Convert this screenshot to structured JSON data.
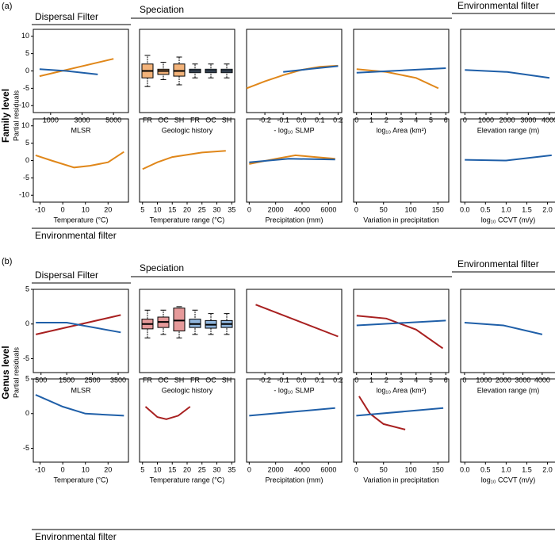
{
  "figure": {
    "sections": [
      {
        "tag": "(a)",
        "level": "Family level",
        "ylabel": "Partial residuals",
        "dispersal": "Dispersal Filter",
        "speciation": "Speciation",
        "env_top": "Environmental filter",
        "env_bottom": "Environmental filter"
      },
      {
        "tag": "(b)",
        "level": "Genus level",
        "ylabel": "Partial residuals",
        "dispersal": "Dispersal Filter",
        "speciation": "Speciation",
        "env_top": "Environmental filter",
        "env_bottom": "Environmental filter"
      }
    ]
  },
  "chart_data": [
    {
      "type": "line",
      "xlabel": "MLSR",
      "xlim": [
        -100,
        5950
      ],
      "xticks": [
        1000,
        3000,
        5000
      ],
      "ylim": [
        -12,
        12
      ],
      "yticks": [
        -10,
        -5,
        0,
        5,
        10
      ],
      "series": [
        {
          "color": "#e0871a",
          "x": [
            300,
            5000
          ],
          "values": [
            -1.5,
            3.5
          ]
        },
        {
          "color": "#1f5fa8",
          "x": [
            300,
            2000,
            4000
          ],
          "values": [
            0.5,
            0,
            -1
          ]
        }
      ]
    },
    {
      "type": "box",
      "xlabel": "Geologic history",
      "ylim": [
        -12,
        12
      ],
      "boxes": [
        {
          "name": "FR",
          "color": "#f3b37a",
          "whislo": -4.5,
          "q1": -2,
          "median": 0,
          "q3": 2,
          "whishi": 4.5
        },
        {
          "name": "OC",
          "color": "#f3b37a",
          "whislo": -2.5,
          "q1": -1,
          "median": 0,
          "q3": 0.5,
          "whishi": 2.5
        },
        {
          "name": "SH",
          "color": "#f3b37a",
          "whislo": -4,
          "q1": -1.5,
          "median": 0,
          "q3": 2,
          "whishi": 4
        },
        {
          "name": "FR",
          "color": "#8fb5dd",
          "whislo": -2,
          "q1": -0.5,
          "median": 0,
          "q3": 0.5,
          "whishi": 2
        },
        {
          "name": "OC",
          "color": "#8fb5dd",
          "whislo": -2,
          "q1": -0.5,
          "median": 0,
          "q3": 0.5,
          "whishi": 2
        },
        {
          "name": "SH",
          "color": "#8fb5dd",
          "whislo": -2,
          "q1": -0.5,
          "median": 0,
          "q3": 0.5,
          "whishi": 2
        }
      ]
    },
    {
      "type": "line",
      "xlabel": "- log₁₀ SLMP",
      "xlim": [
        -0.3,
        0.22
      ],
      "xticks": [
        -0.2,
        -0.1,
        {
          "value": 0,
          "label": "0.0"
        },
        0.1,
        0.2
      ],
      "ylim": [
        -12,
        12
      ],
      "series": [
        {
          "color": "#e0871a",
          "x": [
            -0.3,
            -0.2,
            -0.1,
            0,
            0.1,
            0.2
          ],
          "values": [
            -5,
            -3,
            -1.2,
            0.3,
            1.2,
            1.5
          ]
        },
        {
          "color": "#1f5fa8",
          "x": [
            -0.1,
            0.05,
            0.2
          ],
          "values": [
            -0.3,
            0.6,
            1.4
          ]
        }
      ]
    },
    {
      "type": "line",
      "xlabel": "log₁₀ Area (km²)",
      "xlim": [
        -0.2,
        6.2
      ],
      "xticks": [
        0,
        1,
        2,
        3,
        4,
        5,
        6
      ],
      "ylim": [
        -12,
        12
      ],
      "series": [
        {
          "color": "#e0871a",
          "x": [
            0,
            2,
            4,
            5.5
          ],
          "values": [
            0.5,
            -0.3,
            -2,
            -5
          ]
        },
        {
          "color": "#1f5fa8",
          "x": [
            0,
            6
          ],
          "values": [
            -0.5,
            0.8
          ]
        }
      ]
    },
    {
      "type": "line",
      "xlabel": "Elevation range (m)",
      "xlim": [
        -200,
        4300
      ],
      "xticks": [
        0,
        1000,
        2000,
        3000,
        4000
      ],
      "ylim": [
        -12,
        12
      ],
      "series": [
        {
          "color": "#1f5fa8",
          "x": [
            0,
            2000,
            4000
          ],
          "values": [
            0.3,
            -0.3,
            -2
          ]
        }
      ]
    },
    {
      "type": "line",
      "xlabel": "Temperature (°C)",
      "xlim": [
        -13,
        29
      ],
      "xticks": [
        -10,
        0,
        10,
        20
      ],
      "ylim": [
        -12,
        12
      ],
      "yticks": [
        -10,
        -5,
        0,
        5,
        10
      ],
      "series": [
        {
          "color": "#e0871a",
          "x": [
            -12,
            -5,
            5,
            12,
            20,
            27
          ],
          "values": [
            1.5,
            0,
            -2,
            -1.5,
            -0.5,
            2.5
          ]
        }
      ]
    },
    {
      "type": "line",
      "xlabel": "Temperature range (°C)",
      "xlim": [
        4,
        36
      ],
      "xticks": [
        5,
        10,
        15,
        20,
        25,
        30,
        35
      ],
      "ylim": [
        -12,
        12
      ],
      "series": [
        {
          "color": "#e0871a",
          "x": [
            5,
            10,
            15,
            25,
            33
          ],
          "values": [
            -2.5,
            -0.5,
            1,
            2.3,
            2.8
          ]
        }
      ]
    },
    {
      "type": "line",
      "xlabel": "Precipitation (mm)",
      "xlim": [
        -200,
        7000
      ],
      "xticks": [
        0,
        2000,
        4000,
        6000
      ],
      "ylim": [
        -12,
        12
      ],
      "series": [
        {
          "color": "#e0871a",
          "x": [
            0,
            2000,
            3500,
            5000,
            6500
          ],
          "values": [
            -1,
            0.5,
            1.5,
            1,
            0.5
          ]
        },
        {
          "color": "#1f5fa8",
          "x": [
            0,
            3000,
            6500
          ],
          "values": [
            -0.5,
            0.5,
            0.3
          ]
        }
      ]
    },
    {
      "type": "line",
      "xlabel": "Variation in precipitation",
      "xlim": [
        -5,
        170
      ],
      "xticks": [
        0,
        50,
        100,
        150
      ],
      "ylim": [
        -12,
        12
      ],
      "series": []
    },
    {
      "type": "line",
      "xlabel": "log₁₀ CCVT (m/y)",
      "xlim": [
        -0.1,
        2.2
      ],
      "xticks": [
        {
          "value": 0,
          "label": "0.0"
        },
        0.5,
        {
          "value": 1,
          "label": "1.0"
        },
        1.5,
        {
          "value": 2,
          "label": "2.0"
        }
      ],
      "ylim": [
        -12,
        12
      ],
      "series": [
        {
          "color": "#1f5fa8",
          "x": [
            0,
            1,
            2.1
          ],
          "values": [
            0.2,
            0,
            1.5
          ]
        }
      ]
    },
    {
      "type": "line",
      "xlabel": "MLSR",
      "xlim": [
        200,
        3900
      ],
      "xticks": [
        500,
        1500,
        2500,
        3500
      ],
      "ylim": [
        -7,
        5
      ],
      "yticks": [
        -5,
        0,
        5
      ],
      "series": [
        {
          "color": "#a82020",
          "x": [
            300,
            3600
          ],
          "values": [
            -1.5,
            1.3
          ]
        },
        {
          "color": "#1f5fa8",
          "x": [
            300,
            1500,
            3600
          ],
          "values": [
            0.2,
            0.2,
            -1.2
          ]
        }
      ]
    },
    {
      "type": "box",
      "xlabel": "Geologic history",
      "ylim": [
        -7,
        5
      ],
      "boxes": [
        {
          "name": "FR",
          "color": "#e69a9a",
          "whislo": -2,
          "q1": -0.7,
          "median": 0,
          "q3": 0.7,
          "whishi": 2
        },
        {
          "name": "OC",
          "color": "#e69a9a",
          "whislo": -1.5,
          "q1": -0.5,
          "median": 0.3,
          "q3": 1,
          "whishi": 2
        },
        {
          "name": "SH",
          "color": "#e69a9a",
          "whislo": -2,
          "q1": -1,
          "median": 0.5,
          "q3": 2.3,
          "whishi": 2.5
        },
        {
          "name": "FR",
          "color": "#8fb5dd",
          "whislo": -1.5,
          "q1": -0.5,
          "median": 0,
          "q3": 0.7,
          "whishi": 2
        },
        {
          "name": "OC",
          "color": "#8fb5dd",
          "whislo": -1.5,
          "q1": -0.6,
          "median": -0.1,
          "q3": 0.5,
          "whishi": 1.5
        },
        {
          "name": "SH",
          "color": "#8fb5dd",
          "whislo": -1.5,
          "q1": -0.5,
          "median": 0,
          "q3": 0.5,
          "whishi": 1.5
        }
      ]
    },
    {
      "type": "line",
      "xlabel": "- log₁₀ SLMP",
      "xlim": [
        -0.3,
        0.22
      ],
      "xticks": [
        -0.2,
        -0.1,
        {
          "value": 0,
          "label": "0.0"
        },
        0.1,
        0.2
      ],
      "ylim": [
        -7,
        5
      ],
      "series": [
        {
          "color": "#a82020",
          "x": [
            -0.25,
            0.2
          ],
          "values": [
            2.8,
            -1.8
          ]
        }
      ]
    },
    {
      "type": "line",
      "xlabel": "log₁₀ Area (km²)",
      "xlim": [
        -0.2,
        6.2
      ],
      "xticks": [
        0,
        1,
        2,
        3,
        4,
        5,
        6
      ],
      "ylim": [
        -7,
        5
      ],
      "series": [
        {
          "color": "#a82020",
          "x": [
            0,
            2,
            4,
            5.8
          ],
          "values": [
            1.2,
            0.8,
            -0.8,
            -3.5
          ]
        },
        {
          "color": "#1f5fa8",
          "x": [
            0,
            6
          ],
          "values": [
            -0.2,
            0.5
          ]
        }
      ]
    },
    {
      "type": "line",
      "xlabel": "Elevation range (m)",
      "xlim": [
        -200,
        4700
      ],
      "xticks": [
        0,
        1000,
        2000,
        3000,
        4000
      ],
      "ylim": [
        -7,
        5
      ],
      "series": [
        {
          "color": "#1f5fa8",
          "x": [
            0,
            2000,
            4000
          ],
          "values": [
            0.2,
            -0.2,
            -1.5
          ]
        }
      ]
    },
    {
      "type": "line",
      "xlabel": "Temperature (°C)",
      "xlim": [
        -13,
        29
      ],
      "xticks": [
        -10,
        0,
        10,
        20
      ],
      "ylim": [
        -7,
        5
      ],
      "yticks": [
        -5,
        0,
        5
      ],
      "series": [
        {
          "color": "#1f5fa8",
          "x": [
            -12,
            0,
            10,
            27
          ],
          "values": [
            2.7,
            1,
            0,
            -0.3
          ]
        }
      ]
    },
    {
      "type": "line",
      "xlabel": "Temperature range (°C)",
      "xlim": [
        4,
        36
      ],
      "xticks": [
        5,
        10,
        15,
        20,
        25,
        30,
        35
      ],
      "ylim": [
        -7,
        5
      ],
      "series": [
        {
          "color": "#a82020",
          "x": [
            6,
            10,
            13,
            17,
            21
          ],
          "values": [
            1,
            -0.5,
            -0.8,
            -0.3,
            1
          ]
        }
      ]
    },
    {
      "type": "line",
      "xlabel": "Precipitation (mm)",
      "xlim": [
        -200,
        7000
      ],
      "xticks": [
        0,
        2000,
        4000,
        6000
      ],
      "ylim": [
        -7,
        5
      ],
      "series": [
        {
          "color": "#1f5fa8",
          "x": [
            0,
            6500
          ],
          "values": [
            -0.3,
            0.8
          ]
        }
      ]
    },
    {
      "type": "line",
      "xlabel": "Variation in precipitation",
      "xlim": [
        -5,
        170
      ],
      "xticks": [
        0,
        50,
        100,
        150
      ],
      "ylim": [
        -7,
        5
      ],
      "series": [
        {
          "color": "#a82020",
          "x": [
            5,
            25,
            50,
            90
          ],
          "values": [
            2.5,
            0,
            -1.5,
            -2.3
          ]
        },
        {
          "color": "#1f5fa8",
          "x": [
            0,
            160
          ],
          "values": [
            -0.3,
            0.8
          ]
        }
      ]
    },
    {
      "type": "line",
      "xlabel": "log₁₀ CCVT (m/y)",
      "xlim": [
        -0.1,
        2.2
      ],
      "xticks": [
        {
          "value": 0,
          "label": "0.0"
        },
        0.5,
        {
          "value": 1,
          "label": "1.0"
        },
        1.5,
        {
          "value": 2,
          "label": "2.0"
        }
      ],
      "ylim": [
        -7,
        5
      ],
      "series": []
    }
  ]
}
